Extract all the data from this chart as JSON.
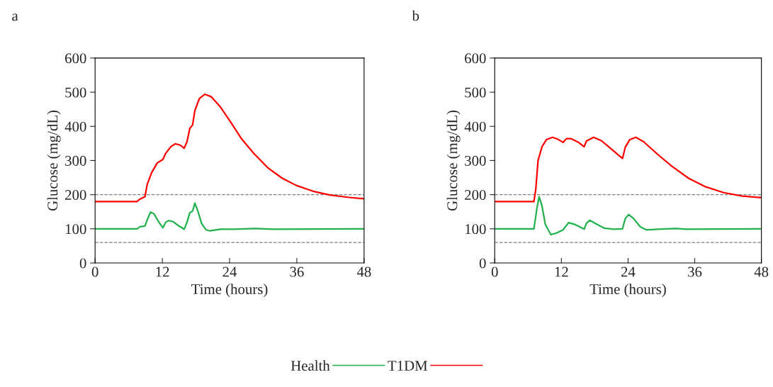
{
  "chart_data": [
    {
      "type": "line",
      "title": "a",
      "xlabel": "Time (hours)",
      "ylabel": "Glucose (mg/dL)",
      "xlim": [
        0,
        48
      ],
      "ylim": [
        0,
        600
      ],
      "xticks": [
        0,
        12,
        24,
        36,
        48
      ],
      "yticks": [
        0,
        100,
        200,
        300,
        400,
        500,
        600
      ],
      "grid": false,
      "legend": "bottom",
      "marker": "none",
      "line_style": "solid",
      "ref_lines": [
        {
          "axis": "y",
          "value": 200,
          "color": "#808080",
          "line_style": "dashed"
        },
        {
          "axis": "y",
          "value": 60,
          "color": "#808080",
          "line_style": "dashed"
        }
      ],
      "series": [
        {
          "name": "Health",
          "color": "#22b14c",
          "x": [
            0,
            7.5,
            8.0,
            8.9,
            9.3,
            9.9,
            10.5,
            11.4,
            12.1,
            12.6,
            13.1,
            13.9,
            14.9,
            15.9,
            16.4,
            16.9,
            17.4,
            17.8,
            18.3,
            19.0,
            19.8,
            20.5,
            22.4,
            24.9,
            28.7,
            31.7,
            48
          ],
          "values": [
            100,
            100,
            106,
            108,
            126,
            149,
            144,
            119,
            103,
            119,
            124,
            121,
            109,
            99,
            119,
            147,
            152,
            175,
            154,
            116,
            97,
            94,
            99,
            99,
            101,
            99,
            100
          ]
        },
        {
          "name": "T1DM",
          "color": "#ff0000",
          "x": [
            0,
            7.5,
            8.0,
            8.9,
            9.3,
            10.1,
            11.1,
            12.1,
            12.6,
            13.5,
            14.3,
            15.2,
            15.9,
            16.4,
            16.9,
            17.4,
            17.8,
            18.6,
            19.6,
            20.7,
            22.4,
            24.1,
            26.2,
            28.3,
            30.8,
            33.4,
            35.9,
            38.9,
            41.9,
            45.3,
            48
          ],
          "values": [
            180,
            180,
            187,
            194,
            230,
            265,
            293,
            303,
            321,
            340,
            349,
            345,
            336,
            355,
            394,
            404,
            446,
            481,
            494,
            487,
            456,
            415,
            362,
            321,
            279,
            248,
            227,
            210,
            199,
            192,
            188
          ]
        }
      ]
    },
    {
      "type": "line",
      "title": "b",
      "xlabel": "Time (hours)",
      "ylabel": "Glucose (mg/dL)",
      "xlim": [
        0,
        48
      ],
      "ylim": [
        0,
        600
      ],
      "xticks": [
        0,
        12,
        24,
        36,
        48
      ],
      "yticks": [
        0,
        100,
        200,
        300,
        400,
        500,
        600
      ],
      "grid": false,
      "marker": "none",
      "line_style": "solid",
      "ref_lines": [
        {
          "axis": "y",
          "value": 200,
          "color": "#808080",
          "line_style": "dashed"
        },
        {
          "axis": "y",
          "value": 60,
          "color": "#808080",
          "line_style": "dashed"
        }
      ],
      "series": [
        {
          "name": "Health",
          "color": "#22b14c",
          "x": [
            0,
            7.06,
            7.6,
            8.0,
            8.5,
            9.1,
            10.1,
            11.2,
            12.3,
            13.3,
            14.4,
            16.1,
            16.5,
            17.1,
            18.4,
            19.7,
            21.4,
            23.0,
            23.5,
            24.1,
            25.0,
            26.2,
            27.3,
            29.4,
            32.6,
            34.5,
            48
          ],
          "values": [
            100,
            100,
            161,
            194,
            168,
            113,
            83,
            88,
            97,
            118,
            113,
            99,
            116,
            125,
            113,
            102,
            99,
            100,
            130,
            142,
            130,
            106,
            97,
            99,
            101,
            99,
            100
          ]
        },
        {
          "name": "T1DM",
          "color": "#ff0000",
          "x": [
            0,
            7.06,
            7.4,
            7.8,
            8.5,
            9.3,
            10.4,
            11.4,
            12.3,
            12.9,
            13.7,
            15.0,
            16.1,
            16.5,
            17.8,
            19.2,
            20.9,
            23.0,
            23.5,
            24.3,
            25.4,
            26.8,
            29.4,
            31.9,
            34.9,
            37.8,
            41.2,
            44.6,
            48
          ],
          "values": [
            180,
            180,
            217,
            300,
            340,
            361,
            368,
            362,
            353,
            364,
            364,
            354,
            340,
            357,
            368,
            358,
            335,
            306,
            339,
            361,
            368,
            355,
            317,
            283,
            248,
            224,
            206,
            196,
            191
          ]
        }
      ]
    }
  ]
}
